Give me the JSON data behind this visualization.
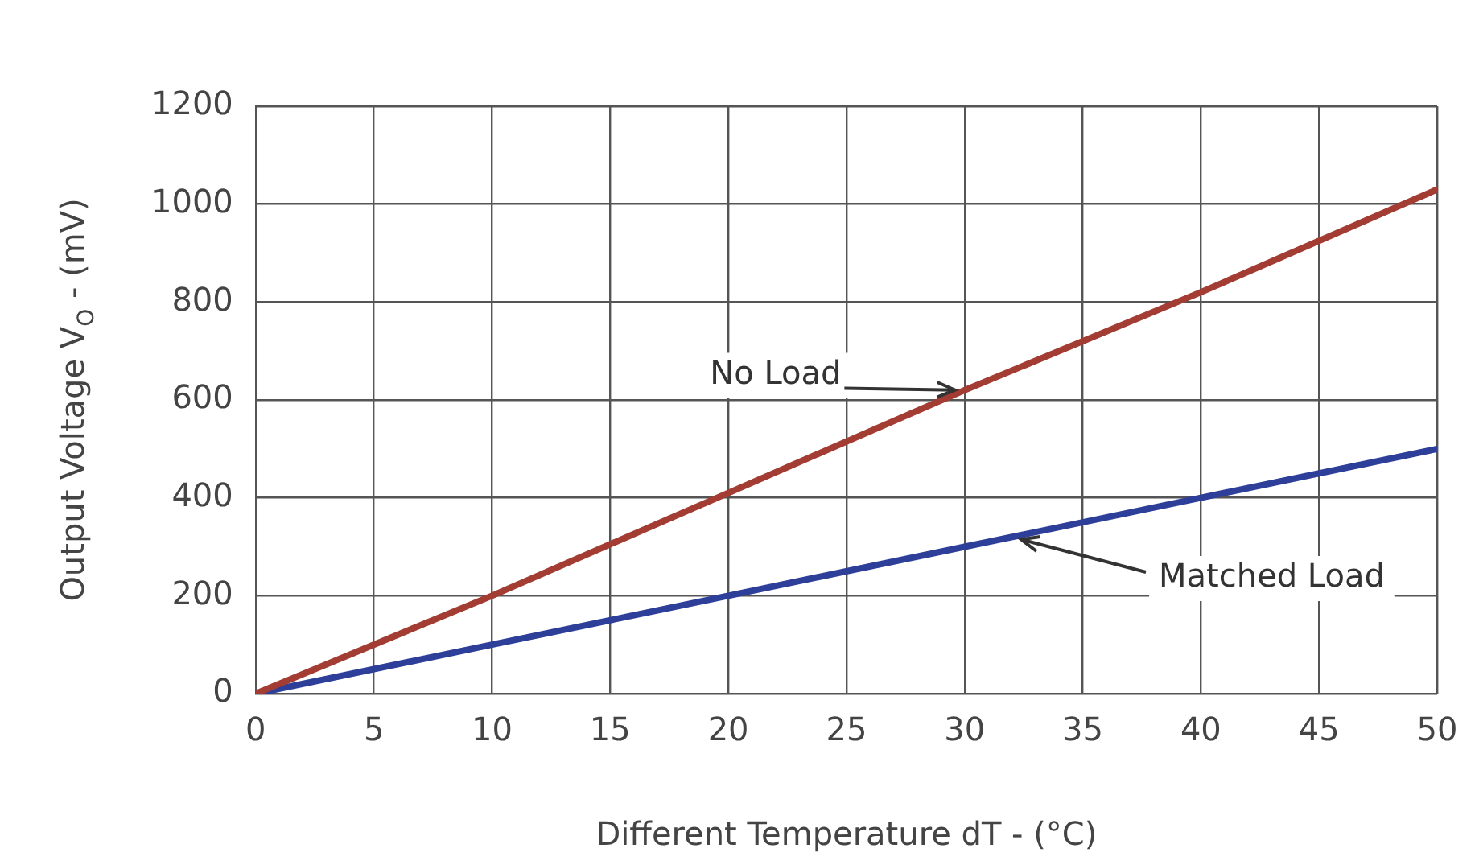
{
  "chart_data": {
    "type": "line",
    "xlabel": "Different Temperature dT - (°C)",
    "ylabel": "Output Voltage V$_{O}$ - (mV)",
    "x": [
      0,
      10,
      20,
      30,
      40,
      50
    ],
    "series": [
      {
        "name": "No Load",
        "color": "#a33c33",
        "values": [
          0,
          200,
          410,
          620,
          820,
          1030
        ]
      },
      {
        "name": "Matched Load",
        "color": "#2e3f9a",
        "values": [
          0,
          100,
          200,
          300,
          400,
          500
        ]
      }
    ],
    "xlim": [
      0,
      50
    ],
    "xticks": [
      0,
      5,
      10,
      15,
      20,
      25,
      30,
      35,
      40,
      45,
      50
    ],
    "ylim": [
      0,
      1200
    ],
    "yticks": [
      0,
      200,
      400,
      600,
      800,
      1000,
      1200
    ],
    "grid": true,
    "legend": false,
    "marker": "none",
    "line_style": "solid"
  }
}
